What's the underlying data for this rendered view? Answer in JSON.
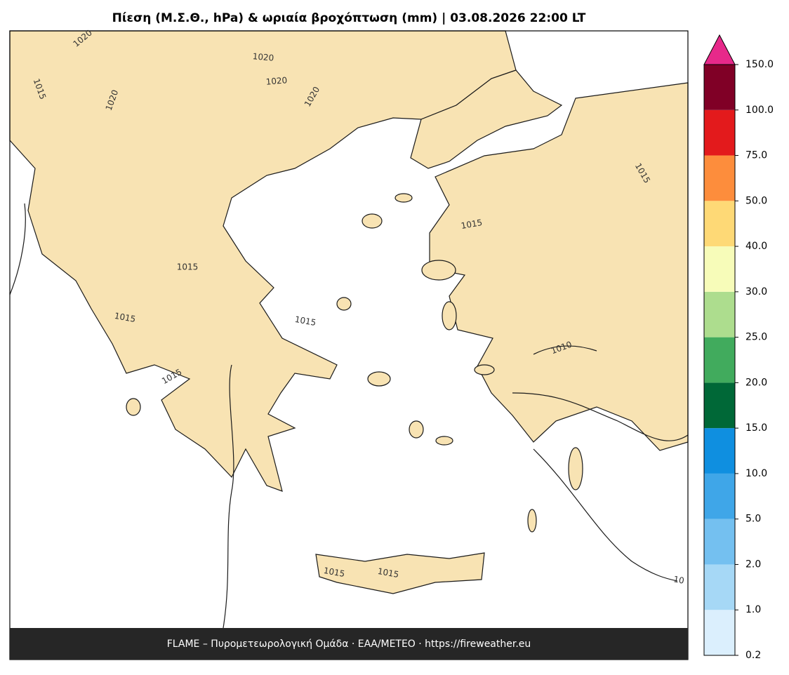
{
  "title": "Πίεση (Μ.Σ.Θ., hPa) & ωριαία βροχόπτωση (mm)  |  03.08.2026 22:00 LT",
  "footer": "FLAME – Πυρομετεωρολογική Ομάδα · ΕΑΑ/METEO · https://fireweather.eu",
  "contour_labels": [
    "1020",
    "1020",
    "1020",
    "1020",
    "1020",
    "1015",
    "1015",
    "1015",
    "1015",
    "1015",
    "1015",
    "1015",
    "1015",
    "1015",
    "1010",
    "10"
  ],
  "colorbar": {
    "ticks": [
      0.2,
      {
        "value": 1,
        "label": "1.0"
      },
      {
        "value": 2,
        "label": "2.0"
      },
      {
        "value": 5,
        "label": "5.0"
      },
      {
        "value": 10,
        "label": "10.0"
      },
      {
        "value": 15,
        "label": "15.0"
      },
      {
        "value": 20,
        "label": "20.0"
      },
      {
        "value": 25,
        "label": "25.0"
      },
      {
        "value": 30,
        "label": "30.0"
      },
      {
        "value": 40,
        "label": "40.0"
      },
      {
        "value": 50,
        "label": "50.0"
      },
      {
        "value": 75,
        "label": "75.0"
      },
      {
        "value": 100,
        "label": "100.0"
      },
      {
        "value": 150,
        "label": "150.0"
      }
    ],
    "colors": [
      "#dbeffd",
      "#a6d8f6",
      "#74c0f0",
      "#3fa6e8",
      "#0f8fe0",
      "#006837",
      "#41ab5d",
      "#addd8e",
      "#f7fcb9",
      "#fed976",
      "#fd8d3c",
      "#e31a1c",
      "#800026"
    ],
    "extend_color": "#e7298a"
  }
}
